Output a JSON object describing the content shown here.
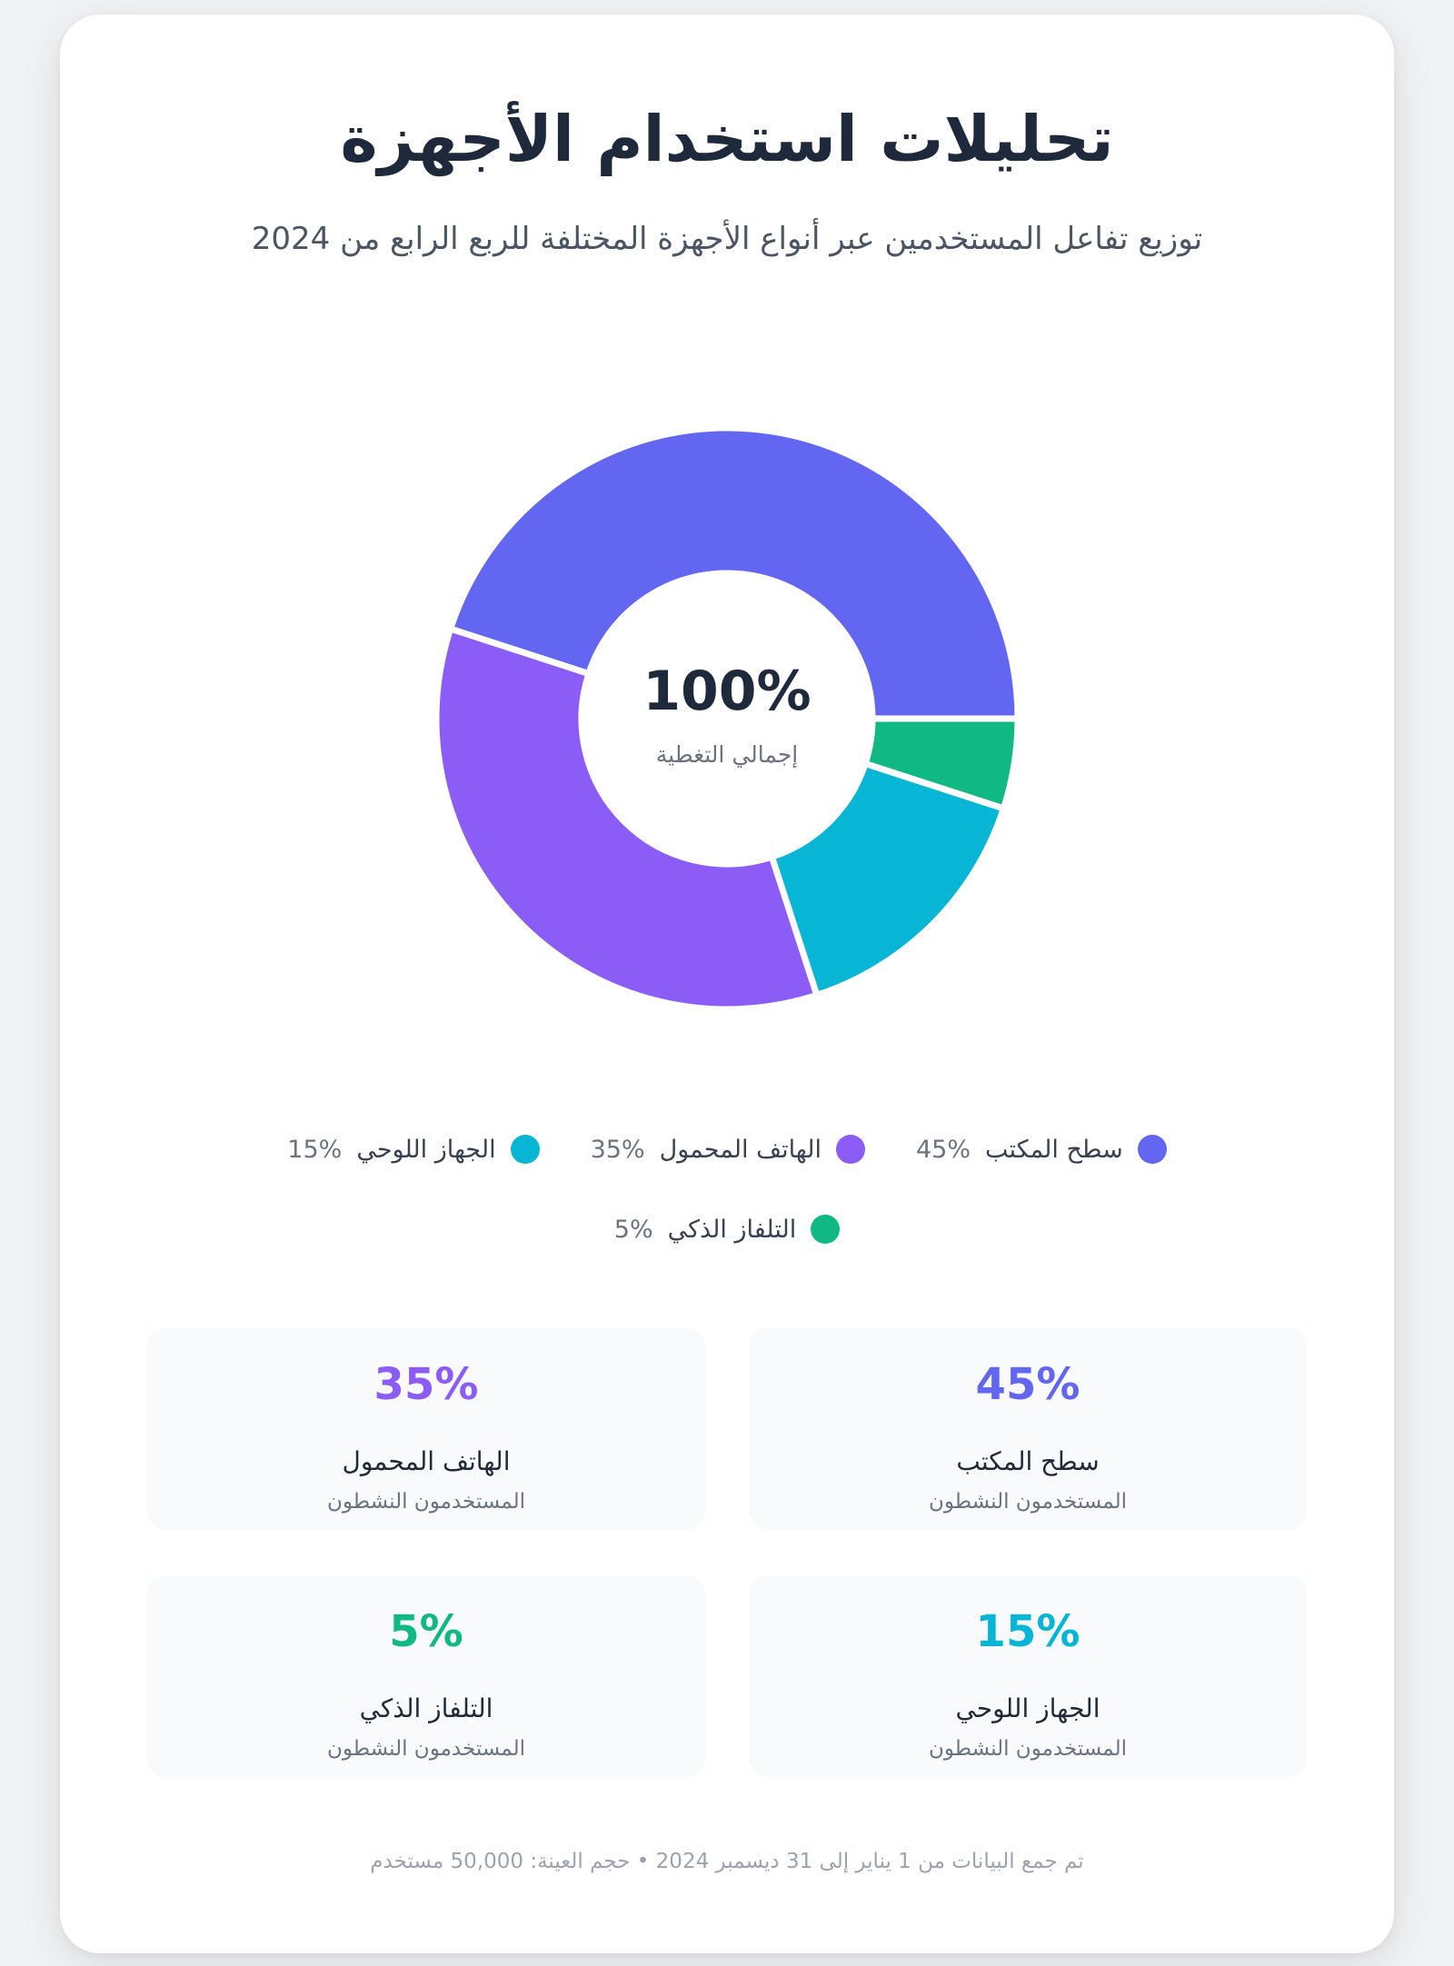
{
  "header": {
    "title": "تحليلات استخدام الأجهزة",
    "subtitle": "توزيع تفاعل المستخدمين عبر أنواع الأجهزة المختلفة للربع الرابع من 2024"
  },
  "chart_data": {
    "type": "pie",
    "variant": "donut",
    "categories": [
      "سطح المكتب",
      "الهاتف المحمول",
      "الجهاز اللوحي",
      "التلفاز الذكي"
    ],
    "values": [
      45,
      35,
      15,
      5
    ],
    "value_labels": [
      "45%",
      "35%",
      "15%",
      "5%"
    ],
    "colors": [
      "#6366f1",
      "#8b5cf6",
      "#06b6d4",
      "#10b981"
    ],
    "center_value": "100%",
    "center_label": "إجمالي التغطية",
    "legend_position": "bottom"
  },
  "stats": [
    {
      "value": "45%",
      "label": "سطح المكتب",
      "sub": "المستخدمون النشطون",
      "color": "#6366f1"
    },
    {
      "value": "35%",
      "label": "الهاتف المحمول",
      "sub": "المستخدمون النشطون",
      "color": "#8b5cf6"
    },
    {
      "value": "15%",
      "label": "الجهاز اللوحي",
      "sub": "المستخدمون النشطون",
      "color": "#06b6d4"
    },
    {
      "value": "5%",
      "label": "التلفاز الذكي",
      "sub": "المستخدمون النشطون",
      "color": "#10b981"
    }
  ],
  "footer": {
    "text": "تم جمع البيانات من 1 يناير إلى 31 ديسمبر 2024 • حجم العينة: 50,000 مستخدم"
  }
}
